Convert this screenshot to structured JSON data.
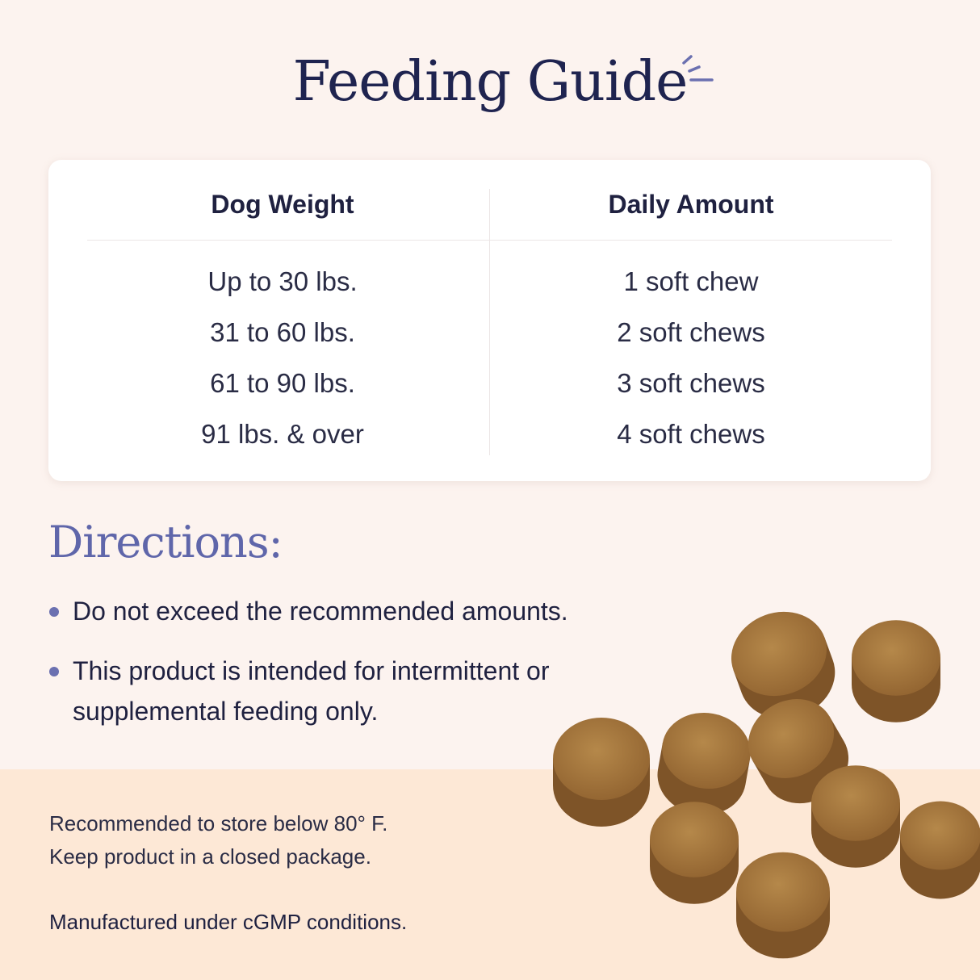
{
  "title": "Feeding Guide",
  "table": {
    "headers": [
      "Dog Weight",
      "Daily Amount"
    ],
    "rows": [
      [
        "Up to 30 lbs.",
        "1 soft chew"
      ],
      [
        "31 to 60 lbs.",
        "2 soft chews"
      ],
      [
        "61 to 90 lbs.",
        "3 soft chews"
      ],
      [
        "91 lbs. & over",
        "4 soft chews"
      ]
    ]
  },
  "directions": {
    "title": "Directions:",
    "items": [
      "Do not exceed the recommended amounts.",
      "This product is intended for intermittent or supplemental feeding only."
    ]
  },
  "notes": {
    "storage_1": "Recommended to store below 80° F.",
    "storage_2": "Keep product in a closed package.",
    "manufacturing": "Manufactured under cGMP conditions."
  },
  "colors": {
    "title": "#1f2450",
    "accent": "#5f66aa",
    "background": "#fcf3ef",
    "band": "#fde8d6",
    "chew": "#a87a40"
  }
}
